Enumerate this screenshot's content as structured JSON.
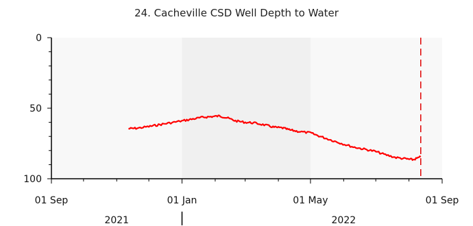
{
  "chart_data": {
    "type": "line",
    "title": "24. Cacheville CSD Well Depth to Water",
    "xlabel": "",
    "ylabel": "",
    "y_reversed": true,
    "ylim": [
      0,
      100
    ],
    "y_ticks": [
      {
        "value": 0,
        "label": "0"
      },
      {
        "value": 50,
        "label": "50"
      },
      {
        "value": 100,
        "label": "100"
      }
    ],
    "x_ticks": [
      {
        "date": "2021-09-01",
        "label": "01 Sep"
      },
      {
        "date": "2022-01-01",
        "label": "01 Jan"
      },
      {
        "date": "2022-05-01",
        "label": "01 May"
      },
      {
        "date": "2022-09-01",
        "label": "01 Sep"
      }
    ],
    "year_labels": [
      {
        "date": "2021-11-01",
        "label": "2021"
      },
      {
        "date": "2022-06-01",
        "label": "2022"
      }
    ],
    "year_divider": "2022-01-01",
    "xlim": [
      "2021-09-01",
      "2022-09-01"
    ],
    "shaded_band": [
      "2022-01-01",
      "2022-05-01"
    ],
    "marker_line": {
      "date": "2022-08-12",
      "style": "dashed",
      "color": "#e00000"
    },
    "series": [
      {
        "color": "#ff0000",
        "points": [
          [
            "2021-11-12",
            64.5
          ],
          [
            "2021-11-20",
            64.2
          ],
          [
            "2021-12-01",
            63.0
          ],
          [
            "2021-12-10",
            61.8
          ],
          [
            "2021-12-20",
            60.5
          ],
          [
            "2022-01-01",
            59.0
          ],
          [
            "2022-01-10",
            57.8
          ],
          [
            "2022-01-20",
            56.5
          ],
          [
            "2022-01-28",
            56.0
          ],
          [
            "2022-02-05",
            55.5
          ],
          [
            "2022-02-12",
            56.8
          ],
          [
            "2022-02-20",
            59.0
          ],
          [
            "2022-03-01",
            60.0
          ],
          [
            "2022-03-10",
            60.5
          ],
          [
            "2022-03-20",
            62.0
          ],
          [
            "2022-03-28",
            63.5
          ],
          [
            "2022-04-05",
            64.0
          ],
          [
            "2022-04-12",
            65.5
          ],
          [
            "2022-04-20",
            66.5
          ],
          [
            "2022-05-01",
            67.5
          ],
          [
            "2022-05-10",
            70.0
          ],
          [
            "2022-05-20",
            72.5
          ],
          [
            "2022-05-30",
            75.0
          ],
          [
            "2022-06-10",
            77.5
          ],
          [
            "2022-06-20",
            79.0
          ],
          [
            "2022-06-30",
            80.5
          ],
          [
            "2022-07-10",
            83.0
          ],
          [
            "2022-07-20",
            85.0
          ],
          [
            "2022-07-30",
            86.0
          ],
          [
            "2022-08-05",
            86.5
          ],
          [
            "2022-08-12",
            84.5
          ]
        ]
      }
    ],
    "grid": false
  }
}
